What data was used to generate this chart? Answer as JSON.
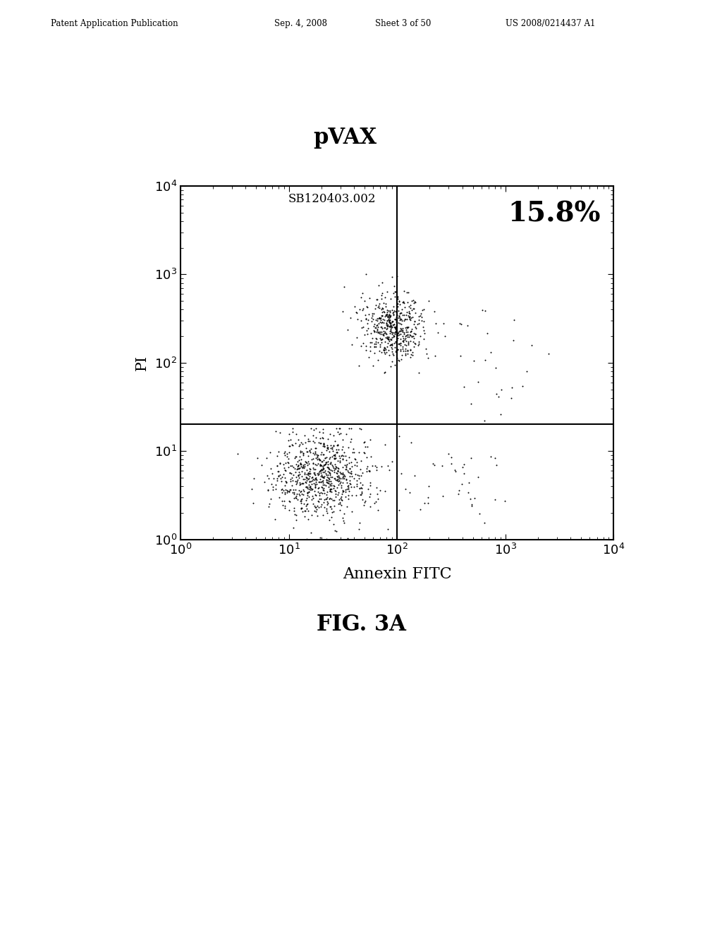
{
  "title": "pVAX",
  "subtitle": "SB120403.002",
  "xlabel": "Annexin FITC",
  "ylabel": "PI",
  "fig_caption": "FIG. 3A",
  "percentage_label": "15.8%",
  "xlim": [
    1.0,
    10000.0
  ],
  "ylim": [
    1.0,
    10000.0
  ],
  "x_gate": 100.0,
  "y_gate": 20.0,
  "background_color": "#ffffff",
  "dot_color": "#000000",
  "header_text": "Patent Application Publication",
  "header_date": "Sep. 4, 2008",
  "header_sheet": "Sheet 3 of 50",
  "header_patent": "US 2008/0214437 A1"
}
